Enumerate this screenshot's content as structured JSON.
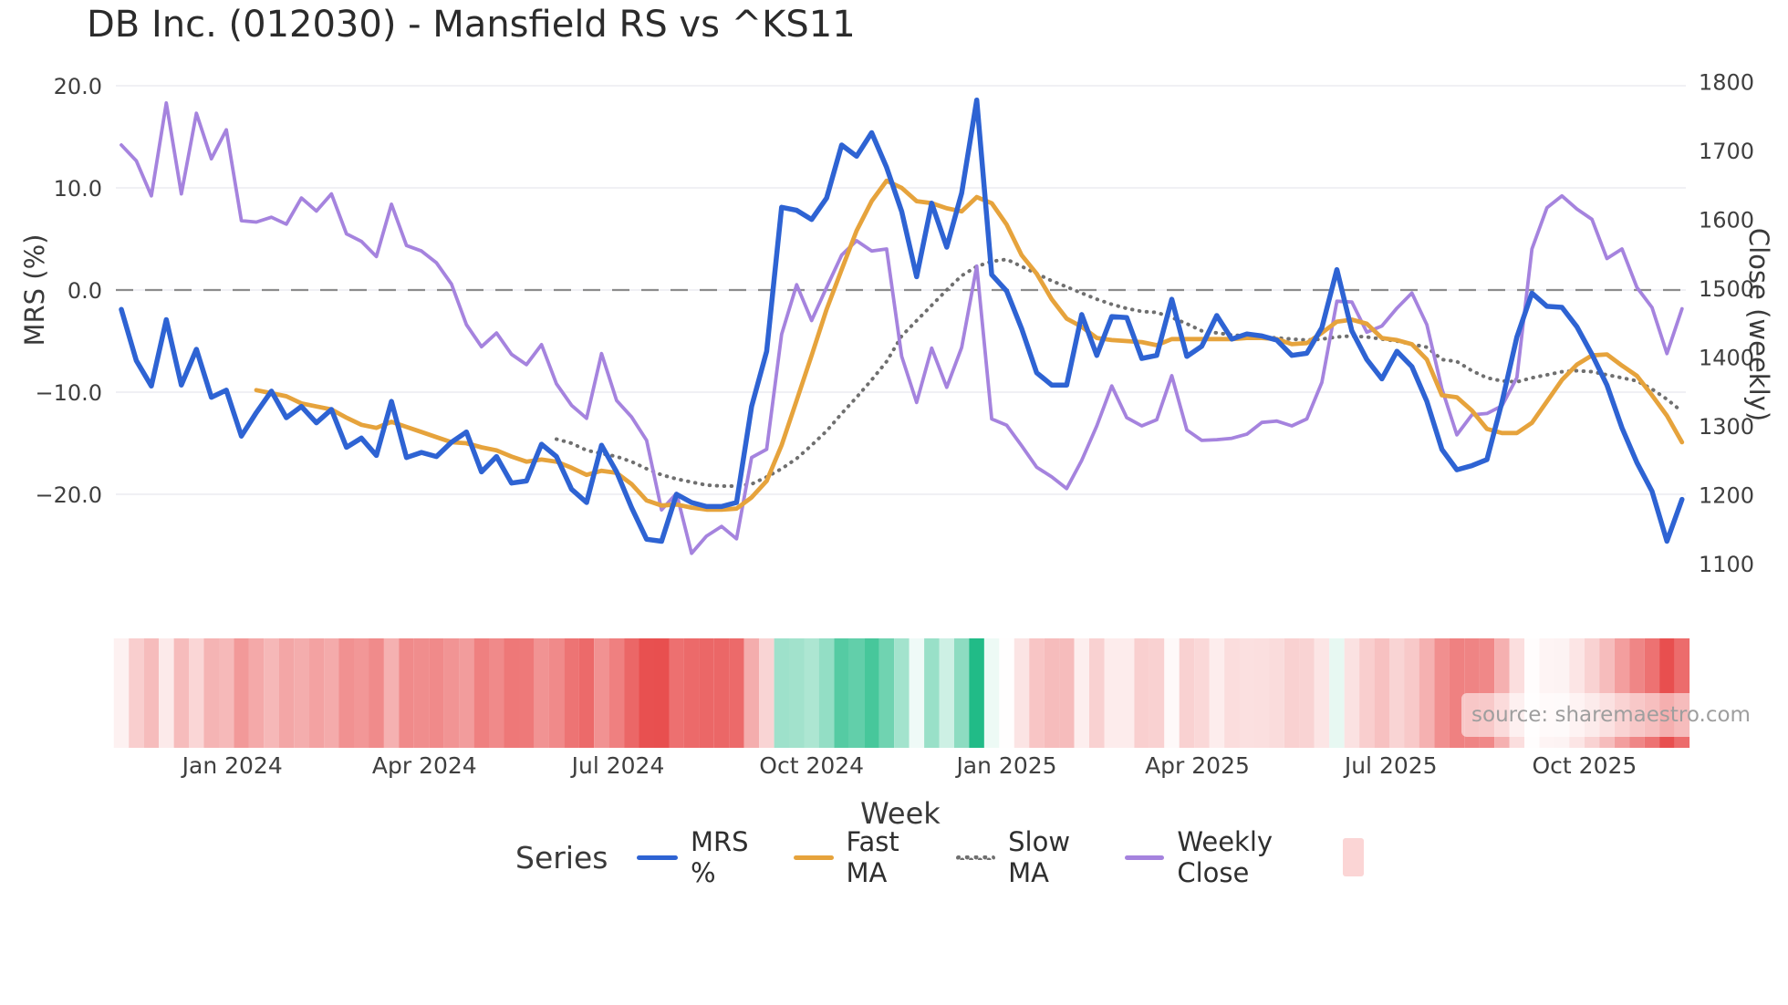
{
  "source_note": "source: sharemaestro.com",
  "chart_data": {
    "type": "line",
    "title": "DB Inc. (012030) - Mansfield RS vs ^KS11",
    "x_unit": "weekly",
    "legend": {
      "title": "Series"
    },
    "axes": {
      "x_label": "Week",
      "y_left_label": "MRS (%)",
      "y_right_label": "Close (weekly)",
      "x_ticks": [
        {
          "label": "Jan 2024",
          "week": 7.4
        },
        {
          "label": "Apr 2024",
          "week": 20.2
        },
        {
          "label": "Jul 2024",
          "week": 33.1
        },
        {
          "label": "Oct 2024",
          "week": 46.0
        },
        {
          "label": "Jan 2025",
          "week": 59.0
        },
        {
          "label": "Apr 2025",
          "week": 71.7
        },
        {
          "label": "Jul 2025",
          "week": 84.6
        },
        {
          "label": "Oct 2025",
          "week": 97.5
        }
      ],
      "y_left_ticks": [
        {
          "label": "20.0",
          "value": 20
        },
        {
          "label": "10.0",
          "value": 10
        },
        {
          "label": "0.0",
          "value": 0
        },
        {
          "label": "−10.0",
          "value": -10
        },
        {
          "label": "−20.0",
          "value": -20
        }
      ],
      "y_right_ticks": [
        {
          "label": "1800",
          "value": 1800
        },
        {
          "label": "1700",
          "value": 1700
        },
        {
          "label": "1600",
          "value": 1600
        },
        {
          "label": "1500",
          "value": 1500
        },
        {
          "label": "1400",
          "value": 1400
        },
        {
          "label": "1300",
          "value": 1300
        },
        {
          "label": "1200",
          "value": 1200
        },
        {
          "label": "1100",
          "value": 1100
        }
      ],
      "zero_line": {
        "value": 0,
        "axis": "left",
        "style": "dashed",
        "color": "#8c8c8c"
      }
    },
    "series": [
      {
        "name": "MRS %",
        "axis": "left",
        "color": "#2e63d3",
        "line_style": "solid",
        "line_width": 5.5,
        "start_week": 0,
        "values": [
          -1.9,
          -6.9,
          -9.4,
          -2.9,
          -9.3,
          -5.8,
          -10.5,
          -9.8,
          -14.3,
          -12.0,
          -9.9,
          -12.5,
          -11.4,
          -13.0,
          -11.7,
          -15.4,
          -14.5,
          -16.2,
          -10.9,
          -16.4,
          -15.9,
          -16.3,
          -14.9,
          -13.9,
          -17.8,
          -16.3,
          -18.9,
          -18.7,
          -15.1,
          -16.3,
          -19.5,
          -20.8,
          -15.2,
          -17.8,
          -21.3,
          -24.4,
          -24.6,
          -20.0,
          -20.8,
          -21.2,
          -21.2,
          -20.8,
          -11.4,
          -6.0,
          8.1,
          7.8,
          6.9,
          9.0,
          14.2,
          13.1,
          15.4,
          12.0,
          7.7,
          1.3,
          8.5,
          4.2,
          9.5,
          18.6,
          1.5,
          -0.1,
          -3.8,
          -8.1,
          -9.3,
          -9.3,
          -2.4,
          -6.4,
          -2.6,
          -2.7,
          -6.7,
          -6.4,
          -0.9,
          -6.5,
          -5.5,
          -2.5,
          -4.8,
          -4.3,
          -4.5,
          -4.9,
          -6.4,
          -6.2,
          -3.7,
          2.0,
          -4.0,
          -6.8,
          -8.7,
          -6.0,
          -7.5,
          -10.9,
          -15.6,
          -17.6,
          -17.2,
          -16.6,
          -11.0,
          -4.6,
          -0.3,
          -1.6,
          -1.7,
          -3.6,
          -6.3,
          -9.3,
          -13.5,
          -16.9,
          -19.7,
          -24.6,
          -20.5
        ]
      },
      {
        "name": "Fast MA",
        "axis": "left",
        "color": "#e6a33c",
        "line_style": "solid",
        "line_width": 4.8,
        "start_week": 9,
        "values": [
          -9.8,
          -10.1,
          -10.4,
          -11.1,
          -11.4,
          -11.7,
          -12.5,
          -13.2,
          -13.5,
          -12.9,
          -13.4,
          -13.9,
          -14.4,
          -14.9,
          -15.0,
          -15.4,
          -15.7,
          -16.3,
          -16.8,
          -16.6,
          -16.8,
          -17.4,
          -18.1,
          -17.7,
          -17.9,
          -19.0,
          -20.6,
          -21.1,
          -21.0,
          -21.3,
          -21.5,
          -21.5,
          -21.4,
          -20.3,
          -18.7,
          -15.2,
          -10.8,
          -6.4,
          -1.9,
          2.0,
          5.8,
          8.7,
          10.7,
          10.0,
          8.7,
          8.5,
          8.0,
          7.7,
          9.1,
          8.5,
          6.4,
          3.4,
          1.6,
          -0.9,
          -2.8,
          -3.6,
          -4.7,
          -4.9,
          -5.0,
          -5.1,
          -5.4,
          -4.8,
          -4.8,
          -4.8,
          -4.8,
          -4.8,
          -4.7,
          -4.7,
          -4.8,
          -5.3,
          -5.2,
          -4.2,
          -3.1,
          -2.9,
          -3.3,
          -4.7,
          -4.9,
          -5.3,
          -6.8,
          -10.3,
          -10.5,
          -11.8,
          -13.6,
          -14.0,
          -14.0,
          -13.0,
          -10.9,
          -8.8,
          -7.3,
          -6.4,
          -6.3,
          -7.4,
          -8.4,
          -10.3,
          -12.3,
          -14.9
        ]
      },
      {
        "name": "Slow MA",
        "axis": "left",
        "color": "#6f6f6f",
        "line_style": "dotted",
        "line_width": 4,
        "start_week": 29,
        "values": [
          -14.6,
          -15.0,
          -15.7,
          -16.0,
          -16.3,
          -16.8,
          -17.5,
          -18.1,
          -18.5,
          -18.8,
          -19.1,
          -19.2,
          -19.2,
          -19.0,
          -18.3,
          -17.5,
          -16.5,
          -15.2,
          -13.8,
          -12.1,
          -10.5,
          -8.8,
          -7.0,
          -4.5,
          -3.0,
          -1.5,
          0.0,
          1.4,
          2.3,
          2.8,
          3.0,
          2.3,
          1.6,
          0.9,
          0.3,
          -0.3,
          -0.9,
          -1.4,
          -1.8,
          -2.1,
          -2.2,
          -2.7,
          -3.3,
          -4.0,
          -4.2,
          -4.4,
          -4.5,
          -4.6,
          -4.7,
          -4.8,
          -4.9,
          -4.8,
          -4.6,
          -4.5,
          -4.6,
          -4.8,
          -5.0,
          -5.3,
          -5.6,
          -6.8,
          -7.0,
          -7.9,
          -8.6,
          -8.9,
          -9.0,
          -8.6,
          -8.3,
          -8.0,
          -7.9,
          -8.0,
          -8.3,
          -8.6,
          -8.9,
          -9.7,
          -10.7,
          -11.9
        ]
      },
      {
        "name": "Weekly Close",
        "axis": "right",
        "color": "#a583de",
        "line_style": "solid",
        "line_width": 3.8,
        "start_week": 0,
        "values": [
          1708,
          1685,
          1634,
          1769,
          1637,
          1754,
          1688,
          1730,
          1598,
          1596,
          1603,
          1593,
          1631,
          1612,
          1637,
          1579,
          1568,
          1546,
          1622,
          1562,
          1554,
          1537,
          1506,
          1447,
          1415,
          1435,
          1404,
          1389,
          1418,
          1361,
          1330,
          1311,
          1405,
          1337,
          1313,
          1279,
          1178,
          1202,
          1115,
          1140,
          1154,
          1136,
          1254,
          1266,
          1433,
          1505,
          1453,
          1501,
          1548,
          1569,
          1554,
          1557,
          1401,
          1334,
          1413,
          1356,
          1414,
          1532,
          1310,
          1301,
          1271,
          1240,
          1226,
          1209,
          1250,
          1300,
          1358,
          1312,
          1300,
          1309,
          1373,
          1294,
          1279,
          1280,
          1282,
          1288,
          1305,
          1307,
          1300,
          1310,
          1363,
          1481,
          1480,
          1436,
          1445,
          1471,
          1493,
          1447,
          1354,
          1287,
          1316,
          1318,
          1329,
          1370,
          1557,
          1617,
          1634,
          1615,
          1600,
          1543,
          1557,
          1501,
          1472,
          1405,
          1470
        ]
      }
    ],
    "heatmap_strip": {
      "source_series": "MRS %",
      "negative_color": "#e74545",
      "negative_saturation_at": -26,
      "positive_color": "#04b277",
      "positive_saturation_at": 21,
      "legend_swatch_color": "#fbd5d5"
    }
  }
}
